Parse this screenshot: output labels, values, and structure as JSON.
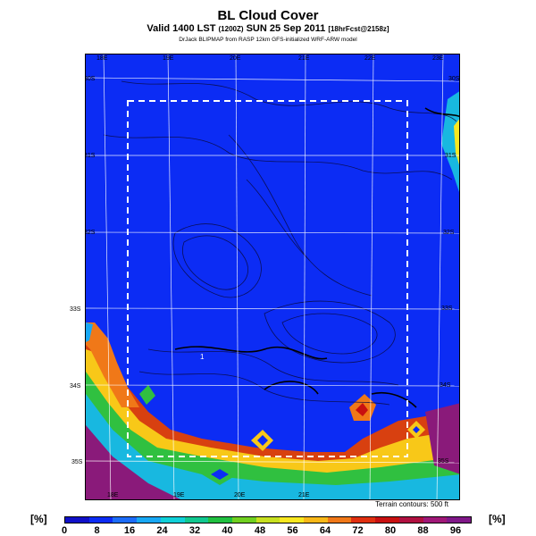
{
  "header": {
    "title": "BL Cloud Cover",
    "valid_main": "Valid 1400 LST",
    "valid_paren": "(1200Z)",
    "valid_date": "SUN 25 Sep 2011",
    "valid_fcst": "[18hrFcst@2158z]",
    "credit": "DrJack BLIPMAP from RASP 12km GFS-initialized WRF-ARW model"
  },
  "map": {
    "top_lon_labels": [
      "18E",
      "19E",
      "20E",
      "21E",
      "22E",
      "23E"
    ],
    "bottom_lon_labels": [
      "18E",
      "19E",
      "20E",
      "21E"
    ],
    "left_lat_labels": [
      "30S",
      "31S",
      "32S",
      "33S",
      "34S",
      "35S"
    ],
    "right_lat_labels": [
      "30S",
      "31S",
      "32S",
      "33S",
      "34S",
      "35S"
    ],
    "spot_value": "1",
    "terrain_note": "Terrain contours: 500 ft"
  },
  "colorbar": {
    "unit_left": "[%]",
    "unit_right": "[%]",
    "ticks": [
      "0",
      "8",
      "16",
      "24",
      "32",
      "40",
      "48",
      "56",
      "64",
      "72",
      "80",
      "88",
      "96"
    ],
    "colors": [
      "#1010c8",
      "#0c2cf4",
      "#1c6cf8",
      "#18a8f4",
      "#10d0d8",
      "#10c890",
      "#20c040",
      "#70d020",
      "#c8e020",
      "#f8e820",
      "#f8b818",
      "#f07818",
      "#e03010",
      "#c81010",
      "#b01040",
      "#a01878",
      "#801888"
    ]
  }
}
